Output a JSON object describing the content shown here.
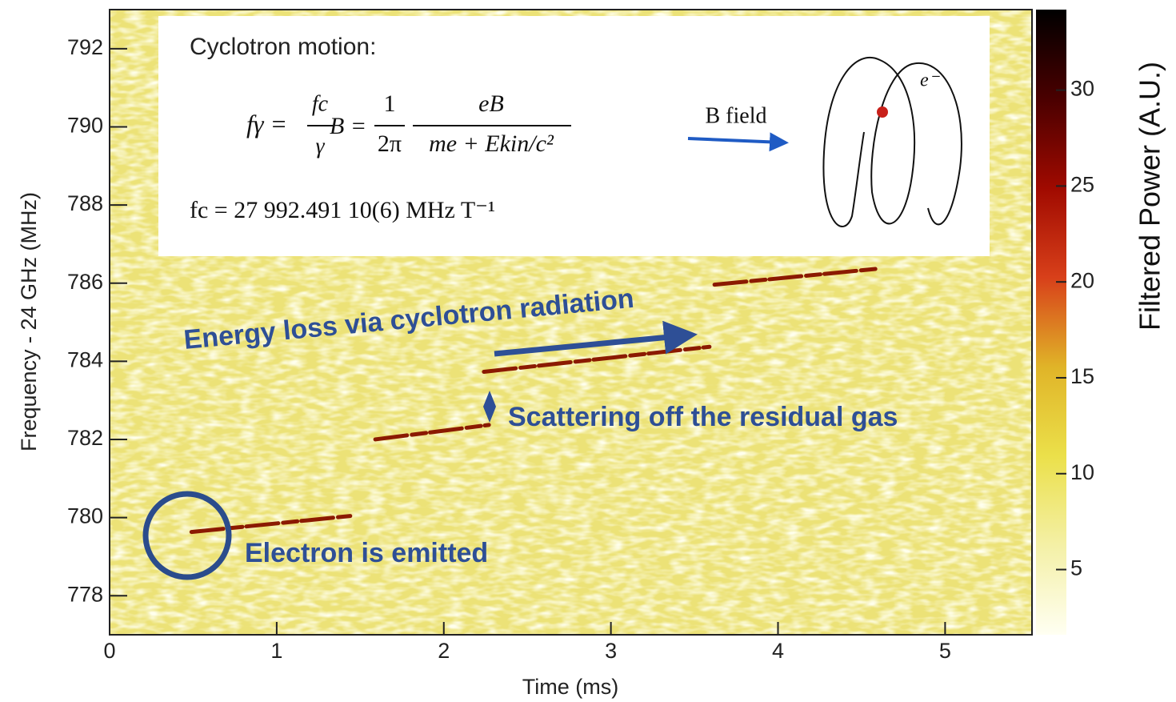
{
  "chart_data": {
    "type": "spectrogram",
    "xlabel": "Time (ms)",
    "ylabel": "Frequency - 24 GHz (MHz)",
    "xlim": [
      0,
      5.52
    ],
    "ylim": [
      777,
      793
    ],
    "xticks": [
      0,
      1,
      2,
      3,
      4,
      5
    ],
    "yticks": [
      778,
      780,
      782,
      784,
      786,
      788,
      790,
      792
    ],
    "series": [
      {
        "color": "#8b1a00",
        "x": [
          0.49,
          1.44
        ],
        "values": [
          779.63,
          780.04
        ]
      },
      {
        "color": "#8b1a00",
        "x": [
          1.59,
          2.27
        ],
        "values": [
          782.0,
          782.37
        ]
      },
      {
        "color": "#8b1a00",
        "x": [
          2.24,
          3.59
        ],
        "values": [
          783.73,
          784.37
        ]
      },
      {
        "color": "#8b1a00",
        "x": [
          3.62,
          4.6
        ],
        "values": [
          785.96,
          786.37
        ]
      }
    ],
    "colorbar": {
      "label": "Filtered Power (A.U.)",
      "zlim": [
        1.6,
        34.2
      ],
      "zticks": [
        5,
        10,
        15,
        20,
        25,
        30
      ],
      "colors": [
        "#fffff2",
        "#f4f0a6",
        "#ebe04a",
        "#e0b428",
        "#d8401a",
        "#a00a00",
        "#4a0000",
        "#000000"
      ]
    },
    "annotations": {
      "energy_loss": "Energy loss via cyclotron radiation",
      "scattering": "Scattering off the residual gas",
      "emitted": "Electron is emitted"
    },
    "inset": {
      "title": "Cyclotron motion:",
      "lhs": "fγ =",
      "frac1_num": "fc",
      "frac1_den": "γ",
      "mid": "B =",
      "frac2_num": "1",
      "frac2_den": "2π",
      "frac3_num": "eB",
      "frac3_den": "me + Ekin/c²",
      "constant": "fc = 27 992.491 10(6) MHz T⁻¹",
      "b_field": "B field",
      "electron": "e⁻"
    }
  }
}
